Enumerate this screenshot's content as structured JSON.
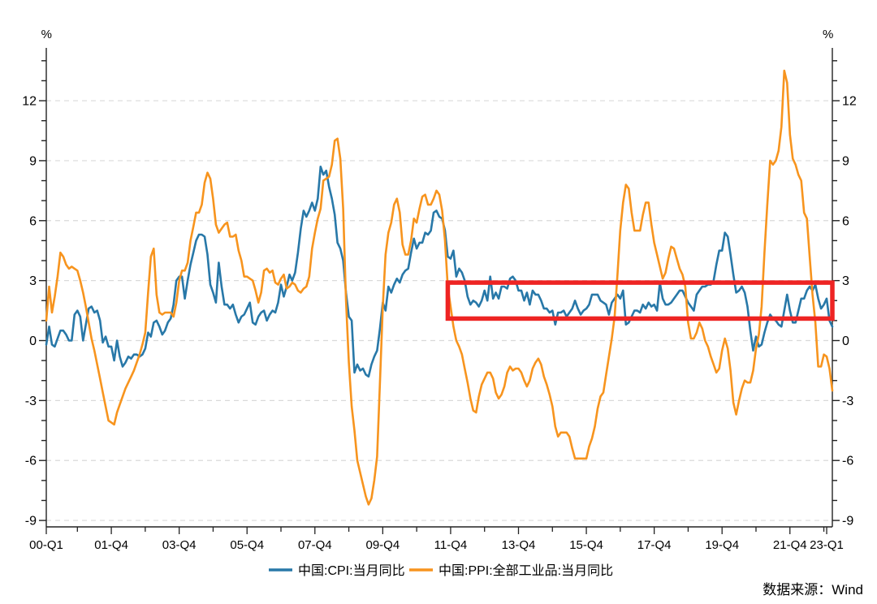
{
  "chart_data": {
    "type": "line",
    "title": "",
    "unit_left": "%",
    "unit_right": "%",
    "x_unit": "month",
    "x_range": [
      "2000-01",
      "2023-03"
    ],
    "y_ticks": [
      -9,
      -6,
      -3,
      0,
      3,
      6,
      9,
      12
    ],
    "y_minor_range": [
      -9,
      14
    ],
    "ylim": [
      -9.4,
      14.6
    ],
    "grid": "horizontal-dashed",
    "legend_position": "bottom-center",
    "x_ticks": [
      {
        "label": "00-Q1",
        "month": 0
      },
      {
        "label": "01-Q4",
        "month": 23
      },
      {
        "label": "03-Q4",
        "month": 47
      },
      {
        "label": "05-Q4",
        "month": 71
      },
      {
        "label": "07-Q4",
        "month": 95
      },
      {
        "label": "09-Q4",
        "month": 119
      },
      {
        "label": "11-Q4",
        "month": 143
      },
      {
        "label": "13-Q4",
        "month": 167
      },
      {
        "label": "15-Q4",
        "month": 191
      },
      {
        "label": "17-Q4",
        "month": 215
      },
      {
        "label": "19-Q4",
        "month": 239
      },
      {
        "label": "21-Q4",
        "month": 263
      },
      {
        "label": "23-Q1",
        "month": 276
      }
    ],
    "colors": {
      "axis": "#222222",
      "grid": "#d9d9d9",
      "text": "#000000",
      "source": "#e8191e"
    },
    "series": [
      {
        "name": "中国:CPI:当月同比",
        "color": "#2878a8",
        "values": [
          -0.2,
          0.7,
          -0.2,
          -0.3,
          0.1,
          0.5,
          0.5,
          0.3,
          0.0,
          0.0,
          1.3,
          1.5,
          1.2,
          0.0,
          0.8,
          1.6,
          1.7,
          1.4,
          1.5,
          1.0,
          -0.1,
          0.2,
          -0.3,
          -0.3,
          -1.0,
          0.0,
          -0.8,
          -1.3,
          -1.1,
          -0.8,
          -0.9,
          -0.7,
          -0.7,
          -0.8,
          -0.7,
          -0.4,
          0.4,
          0.2,
          0.9,
          1.0,
          0.7,
          0.3,
          0.5,
          0.9,
          1.1,
          1.8,
          3.0,
          3.2,
          3.2,
          2.1,
          3.0,
          3.8,
          4.4,
          5.0,
          5.3,
          5.3,
          5.2,
          4.3,
          2.8,
          2.4,
          1.9,
          3.9,
          2.7,
          1.8,
          1.8,
          1.6,
          1.8,
          1.3,
          0.9,
          1.2,
          1.3,
          1.6,
          1.9,
          0.9,
          0.8,
          1.2,
          1.4,
          1.5,
          1.0,
          1.3,
          1.5,
          1.4,
          1.9,
          2.8,
          2.2,
          2.7,
          3.3,
          3.0,
          3.4,
          4.4,
          5.6,
          6.5,
          6.2,
          6.5,
          6.9,
          6.5,
          7.1,
          8.7,
          8.3,
          8.5,
          7.7,
          7.1,
          6.3,
          4.9,
          4.6,
          4.0,
          2.4,
          1.2,
          1.0,
          -1.6,
          -1.2,
          -1.5,
          -1.4,
          -1.7,
          -1.8,
          -1.2,
          -0.8,
          -0.5,
          0.6,
          1.9,
          1.5,
          2.7,
          2.4,
          2.8,
          3.1,
          2.9,
          3.3,
          3.5,
          3.6,
          4.4,
          5.1,
          4.6,
          4.9,
          4.9,
          5.4,
          5.3,
          5.5,
          6.4,
          6.5,
          6.2,
          6.1,
          5.5,
          4.2,
          4.1,
          4.5,
          3.2,
          3.6,
          3.4,
          3.0,
          2.2,
          1.8,
          2.0,
          1.9,
          1.7,
          2.0,
          2.5,
          2.0,
          3.2,
          2.1,
          2.4,
          2.1,
          2.7,
          2.7,
          2.6,
          3.1,
          3.2,
          3.0,
          2.5,
          2.5,
          2.0,
          2.4,
          1.8,
          2.5,
          2.3,
          2.3,
          2.0,
          1.6,
          1.6,
          1.4,
          1.5,
          0.8,
          1.4,
          1.4,
          1.5,
          1.2,
          1.4,
          1.6,
          2.0,
          1.6,
          1.3,
          1.5,
          1.6,
          1.8,
          2.3,
          2.3,
          2.3,
          2.0,
          1.9,
          1.8,
          1.3,
          1.9,
          2.1,
          2.3,
          2.1,
          2.5,
          0.8,
          0.9,
          1.2,
          1.5,
          1.5,
          1.4,
          1.8,
          1.6,
          1.9,
          1.7,
          1.8,
          1.5,
          2.9,
          2.1,
          1.8,
          1.8,
          1.9,
          2.1,
          2.3,
          2.5,
          2.5,
          2.2,
          1.9,
          1.7,
          1.5,
          2.3,
          2.5,
          2.7,
          2.7,
          2.8,
          2.8,
          3.0,
          3.8,
          4.5,
          4.5,
          5.4,
          5.2,
          4.3,
          3.3,
          2.4,
          2.5,
          2.7,
          2.4,
          1.7,
          0.5,
          -0.5,
          0.2,
          -0.3,
          -0.2,
          0.4,
          0.9,
          1.3,
          1.1,
          1.0,
          0.8,
          0.7,
          1.5,
          2.3,
          1.5,
          0.9,
          0.9,
          1.5,
          2.1,
          2.1,
          2.5,
          2.7,
          2.5,
          2.8,
          2.1,
          1.6,
          1.8,
          2.1,
          1.0,
          0.7
        ]
      },
      {
        "name": "中国:PPI:全部工业品:当月同比",
        "color": "#f7941e",
        "values": [
          1.0,
          2.7,
          1.4,
          2.2,
          3.2,
          4.4,
          4.2,
          3.8,
          3.6,
          3.7,
          3.6,
          3.5,
          3.0,
          2.4,
          1.7,
          0.9,
          0.1,
          -0.5,
          -1.2,
          -1.9,
          -2.6,
          -3.3,
          -4.0,
          -4.1,
          -4.2,
          -3.6,
          -3.2,
          -2.8,
          -2.4,
          -2.1,
          -1.8,
          -1.5,
          -1.1,
          -0.7,
          -0.2,
          0.4,
          2.4,
          4.2,
          4.6,
          2.3,
          1.4,
          1.3,
          1.4,
          1.4,
          1.4,
          1.2,
          1.9,
          3.0,
          3.5,
          3.5,
          3.9,
          5.0,
          5.7,
          6.4,
          6.4,
          6.8,
          7.9,
          8.4,
          8.1,
          7.1,
          5.8,
          5.4,
          5.6,
          5.8,
          5.9,
          5.2,
          5.2,
          5.3,
          4.5,
          4.0,
          3.2,
          3.2,
          3.1,
          3.0,
          2.5,
          1.9,
          2.4,
          3.5,
          3.6,
          3.4,
          3.5,
          2.9,
          2.8,
          3.1,
          3.3,
          2.6,
          2.7,
          2.9,
          2.8,
          2.5,
          2.4,
          2.6,
          2.7,
          3.2,
          4.6,
          5.4,
          6.1,
          6.6,
          8.0,
          8.1,
          8.2,
          8.8,
          10.0,
          10.1,
          9.1,
          6.6,
          2.0,
          -1.1,
          -3.3,
          -4.5,
          -6.0,
          -6.6,
          -7.2,
          -7.8,
          -8.2,
          -7.9,
          -7.0,
          -5.8,
          -2.1,
          1.7,
          4.3,
          5.4,
          5.9,
          6.8,
          7.1,
          6.4,
          4.8,
          4.3,
          4.3,
          5.0,
          6.1,
          5.9,
          6.6,
          7.2,
          7.3,
          6.8,
          6.8,
          7.1,
          7.5,
          7.3,
          6.5,
          5.0,
          2.7,
          1.7,
          0.7,
          0.0,
          -0.3,
          -0.7,
          -1.4,
          -2.1,
          -2.9,
          -3.5,
          -3.6,
          -2.8,
          -2.2,
          -1.9,
          -1.6,
          -1.6,
          -1.9,
          -2.6,
          -2.9,
          -2.7,
          -2.3,
          -1.6,
          -1.3,
          -1.5,
          -1.4,
          -1.4,
          -1.6,
          -2.0,
          -2.3,
          -2.0,
          -1.4,
          -1.1,
          -0.9,
          -1.2,
          -1.8,
          -2.2,
          -2.7,
          -3.3,
          -4.3,
          -4.8,
          -4.6,
          -4.6,
          -4.6,
          -4.8,
          -5.4,
          -5.9,
          -5.9,
          -5.9,
          -5.9,
          -5.9,
          -5.3,
          -4.9,
          -4.3,
          -3.4,
          -2.8,
          -2.6,
          -1.7,
          -0.8,
          0.1,
          1.2,
          3.3,
          5.5,
          6.9,
          7.8,
          7.6,
          6.4,
          5.5,
          5.5,
          5.5,
          6.3,
          6.9,
          6.9,
          5.8,
          4.9,
          4.3,
          3.7,
          3.1,
          3.4,
          4.1,
          4.7,
          4.6,
          4.1,
          3.6,
          3.3,
          2.7,
          0.9,
          0.1,
          0.1,
          0.4,
          0.9,
          0.6,
          0.0,
          -0.3,
          -0.8,
          -1.2,
          -1.6,
          -1.4,
          -0.5,
          0.1,
          -0.4,
          -1.5,
          -3.1,
          -3.7,
          -3.0,
          -2.4,
          -2.0,
          -2.1,
          -2.1,
          -1.5,
          -0.4,
          0.3,
          1.7,
          4.4,
          6.8,
          9.0,
          8.8,
          9.0,
          9.5,
          10.7,
          13.5,
          12.9,
          10.3,
          9.1,
          8.8,
          8.3,
          8.0,
          6.4,
          6.1,
          4.2,
          2.3,
          0.9,
          -1.3,
          -1.3,
          -0.7,
          -0.8,
          -1.4,
          -2.5
        ]
      }
    ],
    "annotation_box": {
      "color": "#ee2423",
      "month_start": 142,
      "month_end": 278,
      "value_top": 2.9,
      "value_bottom": 1.1
    },
    "source_note": "数据来源：Wind"
  }
}
